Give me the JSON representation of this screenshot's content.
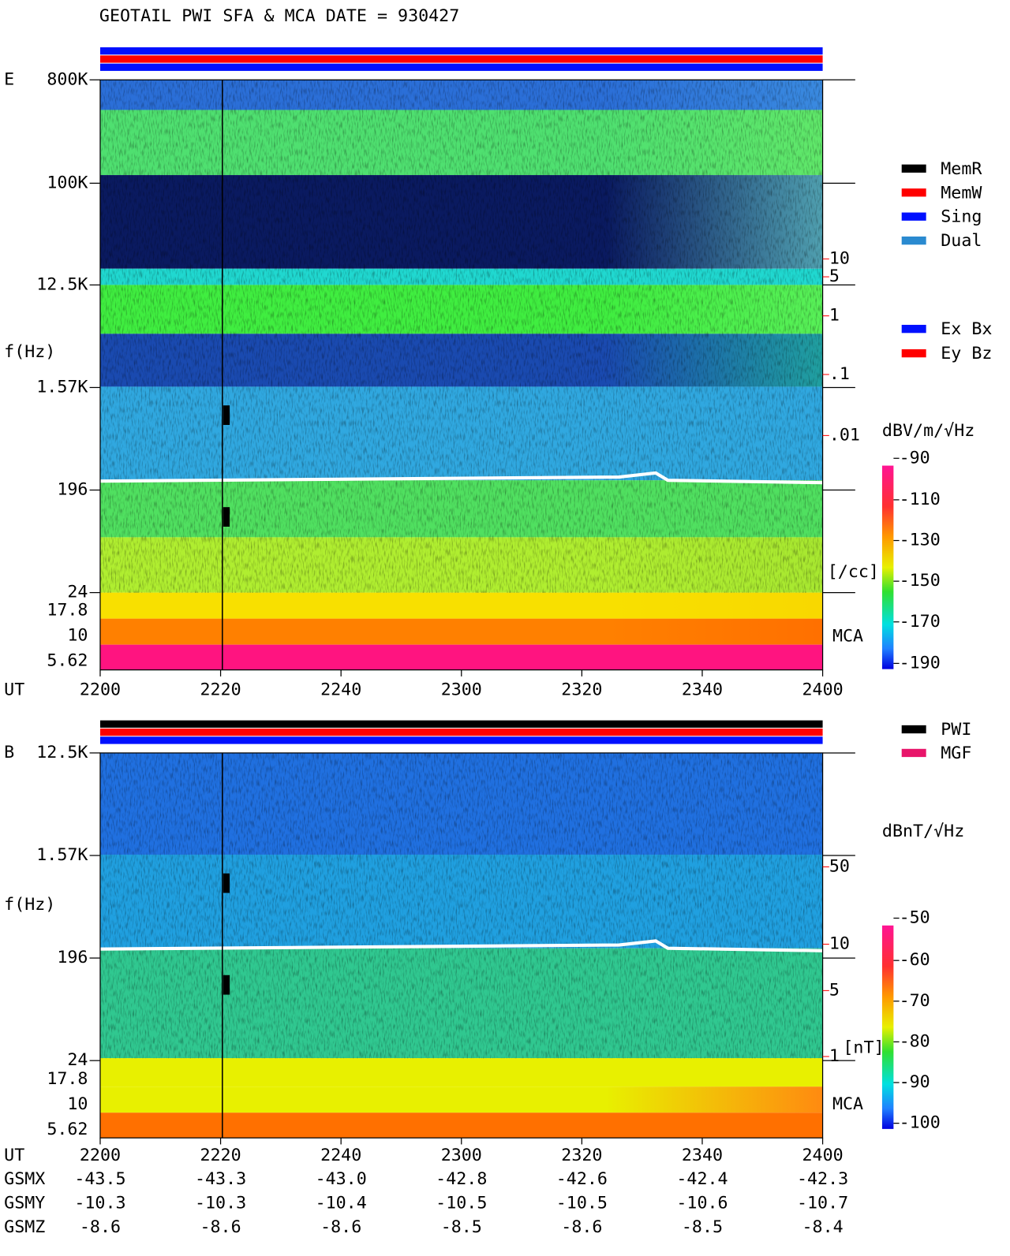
{
  "title": "GEOTAIL  PWI SFA & MCA  DATE = 930427",
  "panel_e": {
    "label": "E",
    "y_axis_label": "f(Hz)",
    "freq_ticks": [
      "800K",
      "100K",
      "12.5K",
      "1.57K",
      "196",
      "24",
      "17.8",
      "10",
      "5.62"
    ],
    "time_label": "UT",
    "time_ticks": [
      "2200",
      "2220",
      "2240",
      "2300",
      "2320",
      "2340",
      "2400"
    ],
    "density_ticks": [
      "10",
      "5",
      "1",
      ".1",
      ".01"
    ],
    "density_unit": "[/cc]",
    "mca_label": "MCA",
    "colorbar_unit": "dBV/m/√Hz",
    "colorbar_ticks": [
      "-90",
      "-110",
      "-130",
      "-150",
      "-170",
      "-190"
    ],
    "legend": [
      "MemR",
      "MemW",
      "Sing",
      "Dual"
    ],
    "legend2": [
      "Ex Bx",
      "Ey Bz"
    ]
  },
  "panel_b": {
    "label": "B",
    "y_axis_label": "f(Hz)",
    "freq_ticks": [
      "12.5K",
      "1.57K",
      "196",
      "24",
      "17.8",
      "10",
      "5.62"
    ],
    "field_ticks": [
      "50",
      "10",
      "5",
      "1"
    ],
    "field_unit": "[nT]",
    "mca_label": "MCA",
    "colorbar_unit": "dBnT/√Hz",
    "colorbar_ticks": [
      "-50",
      "-60",
      "-70",
      "-80",
      "-90",
      "-100"
    ],
    "legend": [
      "PWI",
      "MGF"
    ]
  },
  "orbit": {
    "time_label": "UT",
    "time_ticks": [
      "2200",
      "2220",
      "2240",
      "2300",
      "2320",
      "2340",
      "2400"
    ],
    "rows": [
      {
        "label": "GSMX",
        "values": [
          "-43.5",
          "-43.3",
          "-43.0",
          "-42.8",
          "-42.6",
          "-42.4",
          "-42.3"
        ]
      },
      {
        "label": "GSMY",
        "values": [
          "-10.3",
          "-10.3",
          "-10.4",
          "-10.5",
          "-10.5",
          "-10.6",
          "-10.7"
        ]
      },
      {
        "label": "GSMZ",
        "values": [
          "-8.6",
          "-8.6",
          "-8.6",
          "-8.5",
          "-8.6",
          "-8.5",
          "-8.4"
        ]
      }
    ]
  }
}
